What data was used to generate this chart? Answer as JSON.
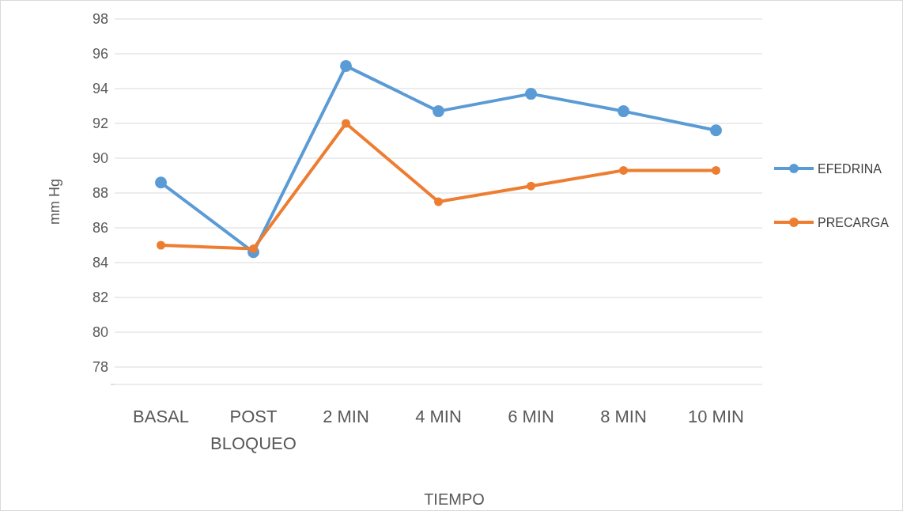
{
  "chart_data": {
    "type": "line",
    "xlabel": "TIEMPO",
    "ylabel": "mm Hg",
    "categories": [
      "BASAL",
      "POST BLOQUEO",
      "2 MIN",
      "4 MIN",
      "6 MIN",
      "8 MIN",
      "10 MIN"
    ],
    "series": [
      {
        "name": "EFEDRINA",
        "color": "#5b9bd5",
        "values": [
          88.6,
          84.6,
          95.3,
          92.7,
          93.7,
          92.7,
          91.6
        ]
      },
      {
        "name": "PRECARGA",
        "color": "#ed7d31",
        "values": [
          85.0,
          84.8,
          92.0,
          87.5,
          88.4,
          89.3,
          89.3
        ]
      }
    ],
    "ylim": [
      77,
      98
    ],
    "yticks": [
      78,
      80,
      82,
      84,
      86,
      88,
      90,
      92,
      94,
      96,
      98
    ],
    "grid": "y",
    "legend": "right",
    "marker": "circle",
    "line_style": "solid"
  }
}
